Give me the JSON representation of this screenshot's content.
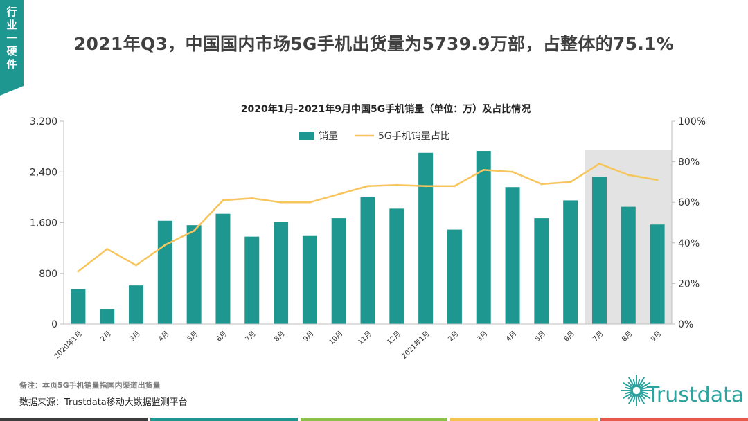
{
  "side_tag": [
    "行",
    "业",
    "一",
    "硬",
    "件"
  ],
  "headline": "2021年Q3，中国国内市场5G手机出货量为5739.9万部，占整体的75.1%",
  "chart_data": {
    "type": "bar",
    "title": "2020年1月-2021年9月中国5G手机销量（单位：万）及占比情况",
    "categories": [
      "2020年1月",
      "2月",
      "3月",
      "4月",
      "5月",
      "6月",
      "7月",
      "8月",
      "9月",
      "10月",
      "11月",
      "12月",
      "2021年1月",
      "2月",
      "3月",
      "4月",
      "5月",
      "6月",
      "7月",
      "8月",
      "9月"
    ],
    "series": [
      {
        "name": "销量",
        "type": "bar",
        "color": "#1f9791",
        "axis": "left",
        "values": [
          550,
          240,
          610,
          1630,
          1560,
          1740,
          1380,
          1610,
          1390,
          1670,
          2010,
          1820,
          2700,
          1490,
          2730,
          2160,
          1670,
          1950,
          2320,
          1850,
          1570
        ]
      },
      {
        "name": "5G手机销量占比",
        "type": "line",
        "color": "#f7c55c",
        "axis": "right",
        "values": [
          26,
          37,
          29,
          39,
          46,
          61,
          62,
          60,
          60,
          64,
          68,
          68.5,
          68,
          68,
          76,
          75,
          69,
          70,
          79,
          73.5,
          71
        ]
      }
    ],
    "y_left": {
      "ticks": [
        "0",
        "800",
        "1,600",
        "2,400",
        "3,200"
      ],
      "min": 0,
      "max": 3200
    },
    "y_right": {
      "ticks": [
        "0%",
        "20%",
        "40%",
        "60%",
        "80%",
        "100%"
      ],
      "min": 0,
      "max": 100
    },
    "highlight_categories": [
      18,
      20
    ],
    "legend_position": "top-center",
    "grid": false
  },
  "note": "备注：本页5G手机销量指国内渠道出货量",
  "source": "数据来源：Trustdata移动大数据监测平台",
  "logo_text": "Trustdata",
  "colors": {
    "teal": "#1f9791",
    "yellow": "#f7c55c",
    "highlight": "#e3e3e3"
  },
  "footer_colors": [
    "#3d3d3d",
    "#1f9791",
    "#8cc04b",
    "#f5c64f",
    "#e8584f"
  ]
}
